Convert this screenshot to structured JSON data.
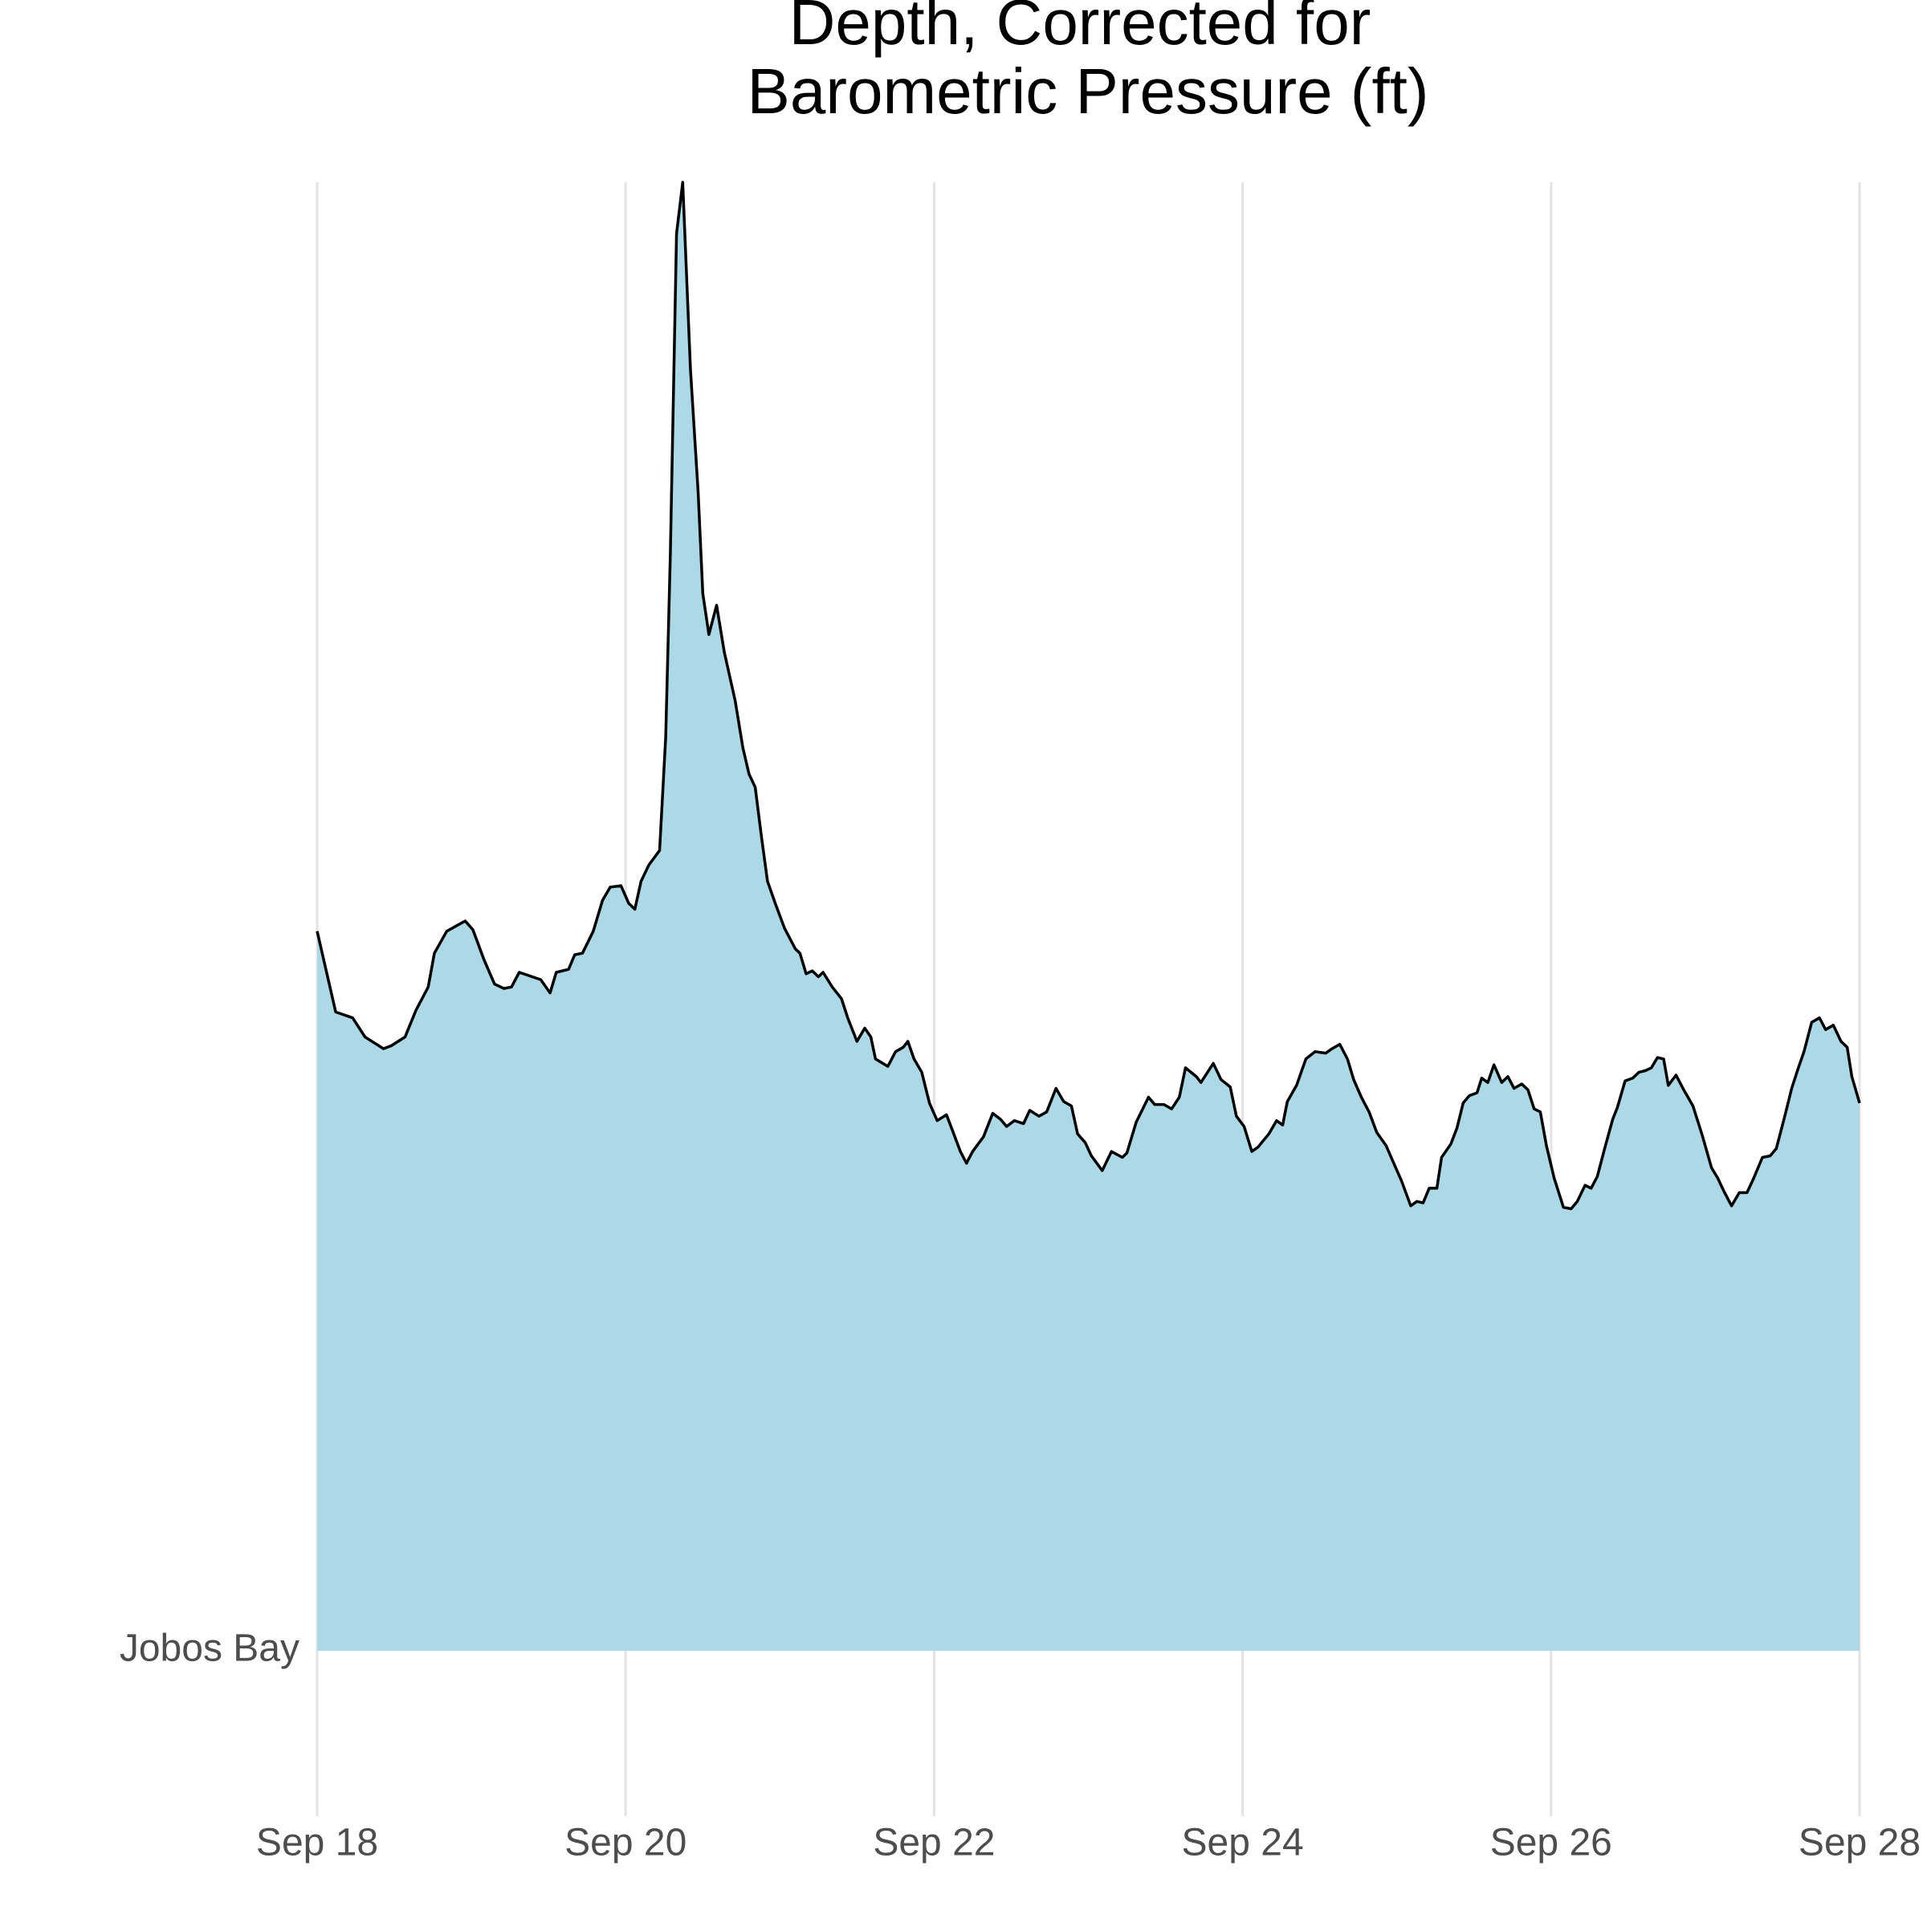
{
  "chart_data": {
    "type": "ridgeline",
    "title": [
      "Depth, Corrected for",
      "Barometric Pressure (ft)"
    ],
    "y_categories": [
      "Jobos Bay"
    ],
    "fill": "#add8e6",
    "line_color": "#000000",
    "grid": true,
    "xlim": [
      18,
      28
    ],
    "xticks": [
      {
        "value": 18,
        "label": "Sep 18"
      },
      {
        "value": 20,
        "label": "Sep 20"
      },
      {
        "value": 22,
        "label": "Sep 22"
      },
      {
        "value": 24,
        "label": "Sep 24"
      },
      {
        "value": 26,
        "label": "Sep 26"
      },
      {
        "value": 28,
        "label": "Sep 28"
      }
    ],
    "ylim": [
      0,
      1
    ],
    "x": [
      18.0,
      18.12,
      18.23,
      18.31,
      18.37,
      18.43,
      18.48,
      18.57,
      18.64,
      18.72,
      18.76,
      18.84,
      18.96,
      19.01,
      19.08,
      19.15,
      19.21,
      19.26,
      19.31,
      19.45,
      19.51,
      19.55,
      19.63,
      19.67,
      19.72,
      19.79,
      19.85,
      19.9,
      19.97,
      20.02,
      20.06,
      20.1,
      20.15,
      20.22,
      20.26,
      20.29,
      20.33,
      20.37,
      20.42,
      20.47,
      20.5,
      20.54,
      20.59,
      20.64,
      20.71,
      20.76,
      20.8,
      20.84,
      20.88,
      20.92,
      20.97,
      21.03,
      21.1,
      21.13,
      21.17,
      21.21,
      21.25,
      21.28,
      21.34,
      21.4,
      21.44,
      21.5,
      21.55,
      21.59,
      21.62,
      21.7,
      21.75,
      21.8,
      21.83,
      21.87,
      21.92,
      21.97,
      22.02,
      22.08,
      22.12,
      22.17,
      22.21,
      22.25,
      22.32,
      22.38,
      22.43,
      22.47,
      22.52,
      22.58,
      22.62,
      22.68,
      22.73,
      22.79,
      22.84,
      22.89,
      22.93,
      22.98,
      23.02,
      23.09,
      23.15,
      23.22,
      23.25,
      23.31,
      23.39,
      23.43,
      23.49,
      23.54,
      23.59,
      23.63,
      23.7,
      23.73,
      23.81,
      23.86,
      23.92,
      23.96,
      24.01,
      24.06,
      24.1,
      24.17,
      24.22,
      24.26,
      24.29,
      24.35,
      24.41,
      24.47,
      24.54,
      24.58,
      24.63,
      24.68,
      24.72,
      24.77,
      24.82,
      24.87,
      24.93,
      24.98,
      25.03,
      25.09,
      25.13,
      25.17,
      25.21,
      25.26,
      25.29,
      25.35,
      25.39,
      25.43,
      25.47,
      25.52,
      25.55,
      25.59,
      25.63,
      25.68,
      25.72,
      25.76,
      25.81,
      25.85,
      25.89,
      25.93,
      25.97,
      26.02,
      26.08,
      26.13,
      26.17,
      26.22,
      26.26,
      26.3,
      26.35,
      26.4,
      26.43,
      26.48,
      26.53,
      26.57,
      26.61,
      26.65,
      26.69,
      26.73,
      26.76,
      26.81,
      26.86,
      26.92,
      26.98,
      27.04,
      27.08,
      27.12,
      27.17,
      27.22,
      27.27,
      27.31,
      27.37,
      27.42,
      27.46,
      27.51,
      27.56,
      27.6,
      27.64,
      27.69,
      27.74,
      27.78,
      27.83,
      27.88,
      27.92,
      27.95,
      28.0
    ],
    "values": [
      0.49,
      0.435,
      0.431,
      0.418,
      0.414,
      0.41,
      0.412,
      0.418,
      0.436,
      0.452,
      0.475,
      0.49,
      0.497,
      0.491,
      0.471,
      0.454,
      0.451,
      0.452,
      0.462,
      0.457,
      0.448,
      0.462,
      0.464,
      0.474,
      0.475,
      0.49,
      0.511,
      0.52,
      0.521,
      0.509,
      0.505,
      0.524,
      0.535,
      0.545,
      0.622,
      0.747,
      0.965,
      1.0,
      0.873,
      0.789,
      0.72,
      0.692,
      0.712,
      0.68,
      0.647,
      0.615,
      0.597,
      0.588,
      0.555,
      0.524,
      0.509,
      0.492,
      0.478,
      0.475,
      0.461,
      0.463,
      0.459,
      0.462,
      0.452,
      0.444,
      0.431,
      0.415,
      0.424,
      0.418,
      0.403,
      0.398,
      0.408,
      0.411,
      0.415,
      0.403,
      0.394,
      0.373,
      0.361,
      0.365,
      0.354,
      0.34,
      0.332,
      0.34,
      0.35,
      0.366,
      0.362,
      0.357,
      0.361,
      0.359,
      0.368,
      0.364,
      0.367,
      0.383,
      0.374,
      0.371,
      0.352,
      0.346,
      0.337,
      0.327,
      0.34,
      0.336,
      0.339,
      0.36,
      0.377,
      0.372,
      0.372,
      0.369,
      0.377,
      0.397,
      0.391,
      0.387,
      0.4,
      0.389,
      0.384,
      0.364,
      0.357,
      0.34,
      0.343,
      0.352,
      0.361,
      0.358,
      0.374,
      0.385,
      0.403,
      0.408,
      0.407,
      0.41,
      0.413,
      0.403,
      0.389,
      0.377,
      0.367,
      0.353,
      0.344,
      0.332,
      0.32,
      0.303,
      0.306,
      0.305,
      0.315,
      0.315,
      0.336,
      0.345,
      0.356,
      0.373,
      0.378,
      0.38,
      0.39,
      0.387,
      0.399,
      0.387,
      0.391,
      0.383,
      0.386,
      0.382,
      0.369,
      0.367,
      0.344,
      0.322,
      0.302,
      0.301,
      0.306,
      0.317,
      0.315,
      0.323,
      0.343,
      0.362,
      0.37,
      0.388,
      0.39,
      0.394,
      0.395,
      0.397,
      0.404,
      0.403,
      0.385,
      0.392,
      0.382,
      0.371,
      0.351,
      0.329,
      0.322,
      0.313,
      0.303,
      0.312,
      0.312,
      0.321,
      0.336,
      0.337,
      0.342,
      0.362,
      0.383,
      0.396,
      0.408,
      0.428,
      0.431,
      0.423,
      0.426,
      0.415,
      0.411,
      0.391,
      0.373
    ]
  }
}
